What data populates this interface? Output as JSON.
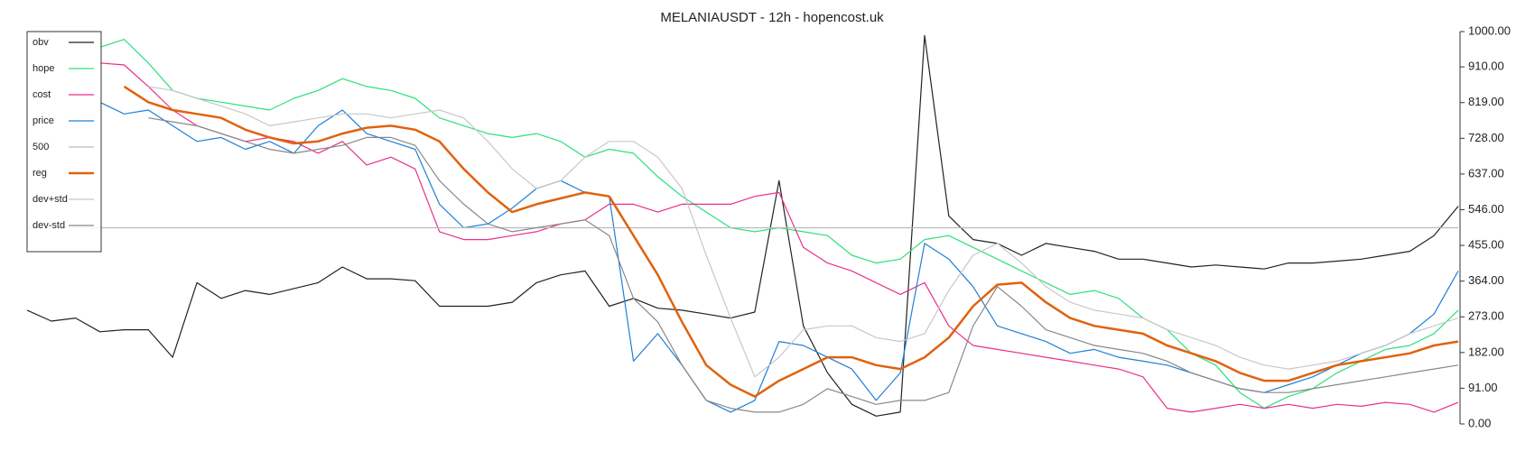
{
  "chart_data": {
    "type": "line",
    "title": "MELANIAUSDT - 12h - hopencost.uk",
    "ylim": [
      0,
      1000
    ],
    "yticks": [
      {
        "value": 0,
        "label": "0.00"
      },
      {
        "value": 91,
        "label": "91.00"
      },
      {
        "value": 182,
        "label": "182.00"
      },
      {
        "value": 273,
        "label": "273.00"
      },
      {
        "value": 364,
        "label": "364.00"
      },
      {
        "value": 455,
        "label": "455.00"
      },
      {
        "value": 546,
        "label": "546.00"
      },
      {
        "value": 637,
        "label": "637.00"
      },
      {
        "value": 728,
        "label": "728.00"
      },
      {
        "value": 819,
        "label": "819.00"
      },
      {
        "value": 910,
        "label": "910.00"
      },
      {
        "value": 1000,
        "label": "1000.00"
      }
    ],
    "legend": "upper left",
    "series": [
      {
        "name": "obv",
        "color": "#222222",
        "values": [
          290,
          262,
          270,
          235,
          240,
          240,
          170,
          360,
          320,
          340,
          330,
          345,
          360,
          400,
          370,
          370,
          365,
          300,
          300,
          300,
          310,
          360,
          380,
          390,
          300,
          320,
          295,
          290,
          280,
          270,
          285,
          620,
          250,
          130,
          50,
          20,
          30,
          990,
          530,
          470,
          460,
          430,
          460,
          450,
          440,
          420,
          420,
          410,
          400,
          405,
          400,
          395,
          410,
          410,
          415,
          420,
          430,
          440,
          480,
          555
        ]
      },
      {
        "name": "hope",
        "color": "#2ee07a",
        "values": [
          null,
          null,
          null,
          960,
          980,
          920,
          850,
          830,
          820,
          810,
          800,
          830,
          850,
          880,
          860,
          850,
          830,
          780,
          760,
          740,
          730,
          740,
          720,
          680,
          700,
          690,
          630,
          580,
          540,
          500,
          490,
          500,
          490,
          480,
          430,
          410,
          420,
          470,
          480,
          450,
          420,
          390,
          360,
          330,
          340,
          320,
          270,
          240,
          180,
          150,
          80,
          40,
          70,
          90,
          130,
          160,
          190,
          200,
          230,
          290
        ]
      },
      {
        "name": "cost",
        "color": "#e8308a",
        "values": [
          null,
          null,
          null,
          920,
          915,
          860,
          800,
          760,
          740,
          720,
          730,
          720,
          690,
          720,
          660,
          680,
          650,
          490,
          470,
          470,
          480,
          490,
          510,
          520,
          560,
          560,
          540,
          560,
          560,
          560,
          580,
          590,
          450,
          410,
          390,
          360,
          330,
          360,
          250,
          200,
          190,
          180,
          170,
          160,
          150,
          140,
          120,
          40,
          30,
          40,
          50,
          40,
          50,
          40,
          50,
          45,
          55,
          50,
          30,
          55
        ]
      },
      {
        "name": "price",
        "color": "#1f7fd8",
        "values": [
          null,
          null,
          null,
          820,
          790,
          800,
          760,
          720,
          730,
          700,
          720,
          690,
          760,
          800,
          740,
          720,
          700,
          560,
          500,
          510,
          550,
          600,
          620,
          590,
          580,
          160,
          230,
          150,
          60,
          30,
          60,
          210,
          200,
          170,
          140,
          60,
          130,
          460,
          420,
          350,
          250,
          230,
          210,
          180,
          190,
          170,
          160,
          150,
          130,
          110,
          90,
          80,
          100,
          120,
          150,
          180,
          200,
          230,
          280,
          390
        ]
      },
      {
        "name": "500",
        "color": "#bbbbbb",
        "values": [
          500,
          500,
          500,
          500,
          500,
          500,
          500,
          500,
          500,
          500,
          500,
          500,
          500,
          500,
          500,
          500,
          500,
          500,
          500,
          500,
          500,
          500,
          500,
          500,
          500,
          500,
          500,
          500,
          500,
          500,
          500,
          500,
          500,
          500,
          500,
          500,
          500,
          500,
          500,
          500,
          500,
          500,
          500,
          500,
          500,
          500,
          500,
          500,
          500,
          500,
          500,
          500,
          500,
          500,
          500,
          500,
          500,
          500,
          500,
          500
        ]
      },
      {
        "name": "reg",
        "color": "#e0620e",
        "values": [
          null,
          null,
          null,
          null,
          860,
          820,
          800,
          790,
          780,
          750,
          730,
          715,
          720,
          740,
          755,
          760,
          750,
          720,
          650,
          590,
          540,
          560,
          575,
          590,
          580,
          480,
          380,
          260,
          150,
          100,
          70,
          110,
          140,
          170,
          170,
          150,
          140,
          170,
          220,
          300,
          355,
          360,
          310,
          270,
          250,
          240,
          230,
          200,
          180,
          160,
          130,
          110,
          110,
          130,
          150,
          160,
          170,
          180,
          200,
          210
        ]
      },
      {
        "name": "dev+std",
        "color": "#c8c8c8",
        "values": [
          null,
          null,
          null,
          null,
          null,
          860,
          850,
          830,
          810,
          790,
          760,
          770,
          780,
          790,
          790,
          780,
          790,
          800,
          780,
          720,
          650,
          600,
          620,
          680,
          720,
          720,
          680,
          600,
          430,
          270,
          120,
          170,
          240,
          250,
          250,
          220,
          210,
          230,
          340,
          430,
          460,
          410,
          350,
          310,
          290,
          280,
          270,
          240,
          220,
          200,
          170,
          150,
          140,
          150,
          160,
          180,
          200,
          230,
          250,
          270
        ]
      },
      {
        "name": "dev-std",
        "color": "#888888",
        "values": [
          null,
          null,
          null,
          null,
          null,
          780,
          770,
          760,
          740,
          720,
          700,
          690,
          700,
          710,
          730,
          730,
          710,
          620,
          560,
          510,
          490,
          500,
          510,
          520,
          480,
          320,
          260,
          150,
          60,
          40,
          30,
          30,
          50,
          90,
          70,
          50,
          60,
          60,
          80,
          250,
          350,
          300,
          240,
          220,
          200,
          190,
          180,
          160,
          130,
          110,
          90,
          80,
          80,
          90,
          100,
          110,
          120,
          130,
          140,
          150
        ]
      }
    ]
  }
}
